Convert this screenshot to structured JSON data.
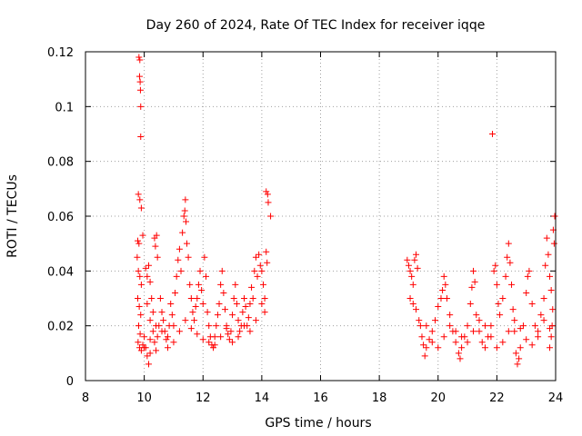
{
  "chart_data": {
    "type": "scatter",
    "title": "Day 260 of 2024, Rate Of TEC Index for receiver iqqe",
    "xlabel": "GPS time / hours",
    "ylabel": "ROTI / TECUs",
    "xlim": [
      8,
      24
    ],
    "ylim": [
      0,
      0.12
    ],
    "xticks": [
      8,
      10,
      12,
      14,
      16,
      18,
      20,
      22,
      24
    ],
    "yticks": [
      0,
      0.02,
      0.04,
      0.06,
      0.08,
      0.1,
      0.12
    ],
    "xtick_labels": [
      "8",
      "10",
      "12",
      "14",
      "16",
      "18",
      "20",
      "22",
      "24"
    ],
    "ytick_labels": [
      "0",
      "0.02",
      "0.04",
      "0.06",
      "0.08",
      "0.1",
      "0.12"
    ],
    "grid": true,
    "marker": "+",
    "color": "#ff0000",
    "series": [
      {
        "name": "ROTI",
        "points": [
          [
            9.82,
            0.118
          ],
          [
            9.85,
            0.117
          ],
          [
            9.84,
            0.111
          ],
          [
            9.86,
            0.109
          ],
          [
            9.87,
            0.106
          ],
          [
            9.88,
            0.1
          ],
          [
            9.88,
            0.089
          ],
          [
            9.8,
            0.068
          ],
          [
            9.85,
            0.066
          ],
          [
            9.9,
            0.063
          ],
          [
            9.78,
            0.051
          ],
          [
            9.82,
            0.05
          ],
          [
            9.95,
            0.053
          ],
          [
            9.76,
            0.045
          ],
          [
            9.8,
            0.04
          ],
          [
            9.85,
            0.038
          ],
          [
            9.9,
            0.035
          ],
          [
            9.78,
            0.03
          ],
          [
            9.83,
            0.027
          ],
          [
            9.88,
            0.024
          ],
          [
            9.81,
            0.02
          ],
          [
            9.86,
            0.017
          ],
          [
            9.79,
            0.014
          ],
          [
            9.84,
            0.012
          ],
          [
            9.9,
            0.011
          ],
          [
            9.95,
            0.013
          ],
          [
            10.0,
            0.016
          ],
          [
            10.05,
            0.012
          ],
          [
            10.1,
            0.009
          ],
          [
            10.15,
            0.006
          ],
          [
            10.2,
            0.01
          ],
          [
            10.05,
            0.041
          ],
          [
            10.1,
            0.038
          ],
          [
            10.15,
            0.042
          ],
          [
            10.2,
            0.036
          ],
          [
            10.1,
            0.028
          ],
          [
            10.2,
            0.022
          ],
          [
            10.3,
            0.018
          ],
          [
            10.35,
            0.014
          ],
          [
            10.4,
            0.011
          ],
          [
            10.45,
            0.016
          ],
          [
            10.5,
            0.02
          ],
          [
            10.25,
            0.03
          ],
          [
            10.3,
            0.025
          ],
          [
            10.35,
            0.052
          ],
          [
            10.38,
            0.049
          ],
          [
            10.42,
            0.053
          ],
          [
            10.45,
            0.045
          ],
          [
            10.55,
            0.03
          ],
          [
            10.6,
            0.025
          ],
          [
            10.65,
            0.022
          ],
          [
            10.7,
            0.018
          ],
          [
            10.75,
            0.015
          ],
          [
            10.8,
            0.012
          ],
          [
            10.85,
            0.02
          ],
          [
            10.9,
            0.028
          ],
          [
            10.95,
            0.024
          ],
          [
            11.0,
            0.02
          ],
          [
            11.05,
            0.032
          ],
          [
            11.1,
            0.038
          ],
          [
            11.15,
            0.044
          ],
          [
            11.2,
            0.048
          ],
          [
            11.25,
            0.04
          ],
          [
            11.3,
            0.054
          ],
          [
            11.35,
            0.06
          ],
          [
            11.38,
            0.062
          ],
          [
            11.4,
            0.066
          ],
          [
            11.42,
            0.058
          ],
          [
            11.45,
            0.05
          ],
          [
            11.5,
            0.045
          ],
          [
            11.55,
            0.035
          ],
          [
            11.6,
            0.03
          ],
          [
            11.65,
            0.025
          ],
          [
            11.7,
            0.022
          ],
          [
            11.75,
            0.027
          ],
          [
            11.8,
            0.03
          ],
          [
            11.85,
            0.035
          ],
          [
            11.9,
            0.04
          ],
          [
            11.95,
            0.033
          ],
          [
            12.0,
            0.028
          ],
          [
            12.05,
            0.045
          ],
          [
            12.1,
            0.038
          ],
          [
            12.15,
            0.025
          ],
          [
            12.2,
            0.02
          ],
          [
            12.25,
            0.016
          ],
          [
            12.3,
            0.013
          ],
          [
            12.35,
            0.012
          ],
          [
            12.4,
            0.016
          ],
          [
            12.45,
            0.02
          ],
          [
            12.5,
            0.024
          ],
          [
            12.55,
            0.028
          ],
          [
            12.6,
            0.035
          ],
          [
            12.65,
            0.04
          ],
          [
            12.7,
            0.032
          ],
          [
            12.75,
            0.026
          ],
          [
            12.8,
            0.02
          ],
          [
            12.85,
            0.017
          ],
          [
            12.9,
            0.015
          ],
          [
            12.95,
            0.018
          ],
          [
            13.0,
            0.024
          ],
          [
            13.05,
            0.03
          ],
          [
            13.1,
            0.035
          ],
          [
            13.15,
            0.028
          ],
          [
            13.2,
            0.022
          ],
          [
            13.25,
            0.018
          ],
          [
            13.3,
            0.02
          ],
          [
            13.35,
            0.025
          ],
          [
            13.4,
            0.03
          ],
          [
            13.45,
            0.027
          ],
          [
            13.5,
            0.02
          ],
          [
            13.55,
            0.023
          ],
          [
            13.6,
            0.028
          ],
          [
            13.65,
            0.034
          ],
          [
            13.7,
            0.03
          ],
          [
            13.75,
            0.04
          ],
          [
            13.8,
            0.045
          ],
          [
            13.85,
            0.038
          ],
          [
            13.9,
            0.046
          ],
          [
            13.95,
            0.042
          ],
          [
            14.0,
            0.04
          ],
          [
            14.05,
            0.035
          ],
          [
            14.1,
            0.03
          ],
          [
            14.1,
            0.025
          ],
          [
            14.15,
            0.047
          ],
          [
            14.18,
            0.043
          ],
          [
            14.15,
            0.069
          ],
          [
            14.2,
            0.068
          ],
          [
            14.22,
            0.065
          ],
          [
            14.3,
            0.06
          ],
          [
            10.0,
            0.012
          ],
          [
            10.2,
            0.015
          ],
          [
            10.4,
            0.02
          ],
          [
            10.6,
            0.018
          ],
          [
            10.8,
            0.016
          ],
          [
            11.0,
            0.014
          ],
          [
            11.2,
            0.018
          ],
          [
            11.4,
            0.022
          ],
          [
            11.6,
            0.019
          ],
          [
            11.8,
            0.017
          ],
          [
            12.0,
            0.015
          ],
          [
            12.2,
            0.014
          ],
          [
            12.4,
            0.013
          ],
          [
            12.6,
            0.016
          ],
          [
            12.8,
            0.019
          ],
          [
            13.0,
            0.014
          ],
          [
            13.2,
            0.016
          ],
          [
            13.4,
            0.02
          ],
          [
            13.6,
            0.018
          ],
          [
            13.8,
            0.022
          ],
          [
            14.0,
            0.028
          ],
          [
            18.95,
            0.044
          ],
          [
            19.0,
            0.042
          ],
          [
            19.05,
            0.04
          ],
          [
            19.1,
            0.038
          ],
          [
            19.15,
            0.035
          ],
          [
            19.2,
            0.044
          ],
          [
            19.25,
            0.046
          ],
          [
            19.3,
            0.041
          ],
          [
            19.05,
            0.03
          ],
          [
            19.15,
            0.028
          ],
          [
            19.25,
            0.026
          ],
          [
            19.35,
            0.022
          ],
          [
            19.4,
            0.02
          ],
          [
            19.45,
            0.016
          ],
          [
            19.5,
            0.013
          ],
          [
            19.55,
            0.009
          ],
          [
            19.6,
            0.012
          ],
          [
            19.7,
            0.015
          ],
          [
            19.8,
            0.018
          ],
          [
            19.9,
            0.022
          ],
          [
            20.0,
            0.027
          ],
          [
            20.1,
            0.03
          ],
          [
            20.15,
            0.033
          ],
          [
            20.2,
            0.038
          ],
          [
            20.25,
            0.035
          ],
          [
            20.3,
            0.03
          ],
          [
            20.4,
            0.024
          ],
          [
            20.5,
            0.018
          ],
          [
            20.6,
            0.014
          ],
          [
            20.7,
            0.01
          ],
          [
            20.75,
            0.008
          ],
          [
            20.8,
            0.012
          ],
          [
            20.9,
            0.016
          ],
          [
            21.0,
            0.02
          ],
          [
            21.1,
            0.028
          ],
          [
            21.15,
            0.034
          ],
          [
            21.2,
            0.04
          ],
          [
            21.25,
            0.036
          ],
          [
            21.3,
            0.024
          ],
          [
            21.4,
            0.018
          ],
          [
            21.5,
            0.014
          ],
          [
            21.6,
            0.012
          ],
          [
            21.7,
            0.016
          ],
          [
            21.8,
            0.02
          ],
          [
            21.85,
            0.09
          ],
          [
            21.9,
            0.04
          ],
          [
            21.95,
            0.042
          ],
          [
            22.0,
            0.035
          ],
          [
            22.05,
            0.028
          ],
          [
            22.1,
            0.024
          ],
          [
            22.2,
            0.03
          ],
          [
            22.3,
            0.038
          ],
          [
            22.35,
            0.045
          ],
          [
            22.4,
            0.05
          ],
          [
            22.45,
            0.043
          ],
          [
            22.5,
            0.035
          ],
          [
            22.55,
            0.026
          ],
          [
            22.6,
            0.018
          ],
          [
            22.65,
            0.01
          ],
          [
            22.7,
            0.006
          ],
          [
            22.75,
            0.008
          ],
          [
            22.8,
            0.012
          ],
          [
            22.9,
            0.02
          ],
          [
            23.0,
            0.032
          ],
          [
            23.05,
            0.038
          ],
          [
            23.1,
            0.04
          ],
          [
            23.2,
            0.028
          ],
          [
            23.3,
            0.02
          ],
          [
            23.4,
            0.016
          ],
          [
            23.5,
            0.024
          ],
          [
            23.6,
            0.03
          ],
          [
            23.65,
            0.042
          ],
          [
            23.7,
            0.052
          ],
          [
            23.75,
            0.046
          ],
          [
            23.8,
            0.038
          ],
          [
            23.85,
            0.033
          ],
          [
            23.9,
            0.026
          ],
          [
            23.95,
            0.05
          ],
          [
            23.97,
            0.06
          ],
          [
            23.92,
            0.055
          ],
          [
            23.88,
            0.02
          ],
          [
            23.85,
            0.016
          ],
          [
            23.8,
            0.012
          ],
          [
            19.6,
            0.02
          ],
          [
            19.8,
            0.014
          ],
          [
            20.0,
            0.012
          ],
          [
            20.2,
            0.016
          ],
          [
            20.4,
            0.02
          ],
          [
            20.6,
            0.018
          ],
          [
            20.8,
            0.016
          ],
          [
            21.0,
            0.014
          ],
          [
            21.2,
            0.018
          ],
          [
            21.4,
            0.022
          ],
          [
            21.6,
            0.02
          ],
          [
            21.8,
            0.016
          ],
          [
            22.0,
            0.012
          ],
          [
            22.2,
            0.014
          ],
          [
            22.4,
            0.018
          ],
          [
            22.6,
            0.022
          ],
          [
            22.8,
            0.019
          ],
          [
            23.0,
            0.015
          ],
          [
            23.2,
            0.013
          ],
          [
            23.4,
            0.018
          ],
          [
            23.6,
            0.022
          ],
          [
            23.8,
            0.019
          ]
        ]
      }
    ]
  }
}
